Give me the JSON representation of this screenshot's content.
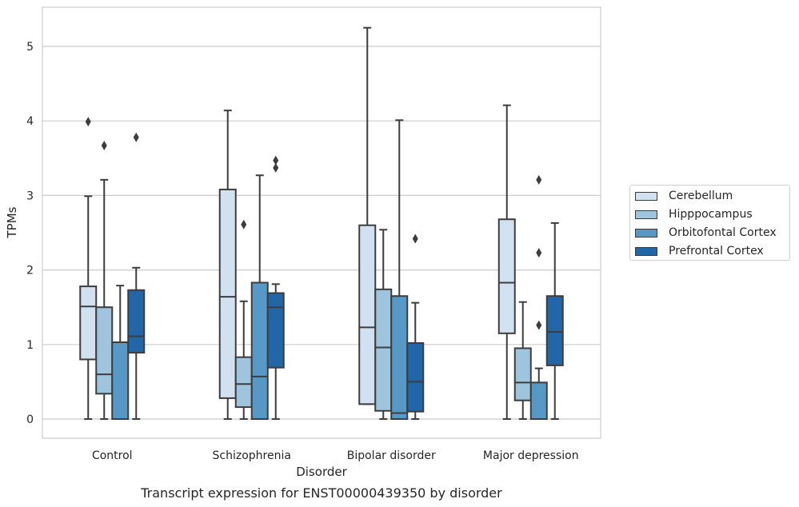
{
  "chart_data": {
    "type": "box",
    "title": "Transcript expression for ENST00000439350 by disorder",
    "xlabel": "Disorder",
    "ylabel": "TPMs",
    "ylim": [
      -0.25,
      5.5
    ],
    "yticks": [
      0,
      1,
      2,
      3,
      4,
      5
    ],
    "grid": true,
    "legend_position": "right",
    "categories": [
      "Control",
      "Schizophrenia",
      "Bipolar disorder",
      "Major depression"
    ],
    "series": [
      {
        "name": "Cerebellum",
        "color": "#d1e1f0",
        "boxes": [
          {
            "whisker_low": 0,
            "q1": 0.8,
            "median": 1.51,
            "q3": 1.78,
            "whisker_high": 2.99,
            "outliers": [
              3.99
            ]
          },
          {
            "whisker_low": 0,
            "q1": 0.28,
            "median": 1.64,
            "q3": 3.08,
            "whisker_high": 4.14,
            "outliers": []
          },
          {
            "whisker_low": 0.2,
            "q1": 0.2,
            "median": 1.23,
            "q3": 2.6,
            "whisker_high": 5.25,
            "outliers": []
          },
          {
            "whisker_low": 0,
            "q1": 1.15,
            "median": 1.83,
            "q3": 2.68,
            "whisker_high": 4.21,
            "outliers": []
          }
        ]
      },
      {
        "name": "Hipppocampus",
        "color": "#9fc4de",
        "boxes": [
          {
            "whisker_low": 0,
            "q1": 0.34,
            "median": 0.6,
            "q3": 1.5,
            "whisker_high": 3.21,
            "outliers": [
              3.67
            ]
          },
          {
            "whisker_low": 0,
            "q1": 0.16,
            "median": 0.47,
            "q3": 0.83,
            "whisker_high": 1.58,
            "outliers": [
              2.61
            ]
          },
          {
            "whisker_low": 0,
            "q1": 0.11,
            "median": 0.96,
            "q3": 1.74,
            "whisker_high": 2.54,
            "outliers": []
          },
          {
            "whisker_low": 0,
            "q1": 0.25,
            "median": 0.49,
            "q3": 0.95,
            "whisker_high": 1.57,
            "outliers": []
          }
        ]
      },
      {
        "name": "Orbitofontal Cortex",
        "color": "#5799c6",
        "boxes": [
          {
            "whisker_low": 0,
            "q1": 0,
            "median": 0,
            "q3": 1.03,
            "whisker_high": 1.79,
            "outliers": []
          },
          {
            "whisker_low": 0,
            "q1": 0,
            "median": 0.57,
            "q3": 1.83,
            "whisker_high": 3.27,
            "outliers": []
          },
          {
            "whisker_low": 0,
            "q1": 0,
            "median": 0.08,
            "q3": 1.65,
            "whisker_high": 4.01,
            "outliers": []
          },
          {
            "whisker_low": 0,
            "q1": 0,
            "median": 0,
            "q3": 0.49,
            "whisker_high": 0.68,
            "outliers": [
              1.26,
              2.23,
              3.21
            ]
          }
        ]
      },
      {
        "name": "Prefrontal Cortex",
        "color": "#2166a9",
        "boxes": [
          {
            "whisker_low": 0,
            "q1": 0.89,
            "median": 1.11,
            "q3": 1.73,
            "whisker_high": 2.03,
            "outliers": [
              3.78
            ]
          },
          {
            "whisker_low": 0,
            "q1": 0.69,
            "median": 1.5,
            "q3": 1.69,
            "whisker_high": 1.81,
            "outliers": [
              3.37,
              3.47
            ]
          },
          {
            "whisker_low": 0,
            "q1": 0.1,
            "median": 0.5,
            "q3": 1.02,
            "whisker_high": 1.56,
            "outliers": [
              2.42
            ]
          },
          {
            "whisker_low": 0,
            "q1": 0.72,
            "median": 1.17,
            "q3": 1.65,
            "whisker_high": 2.63,
            "outliers": []
          }
        ]
      }
    ]
  }
}
